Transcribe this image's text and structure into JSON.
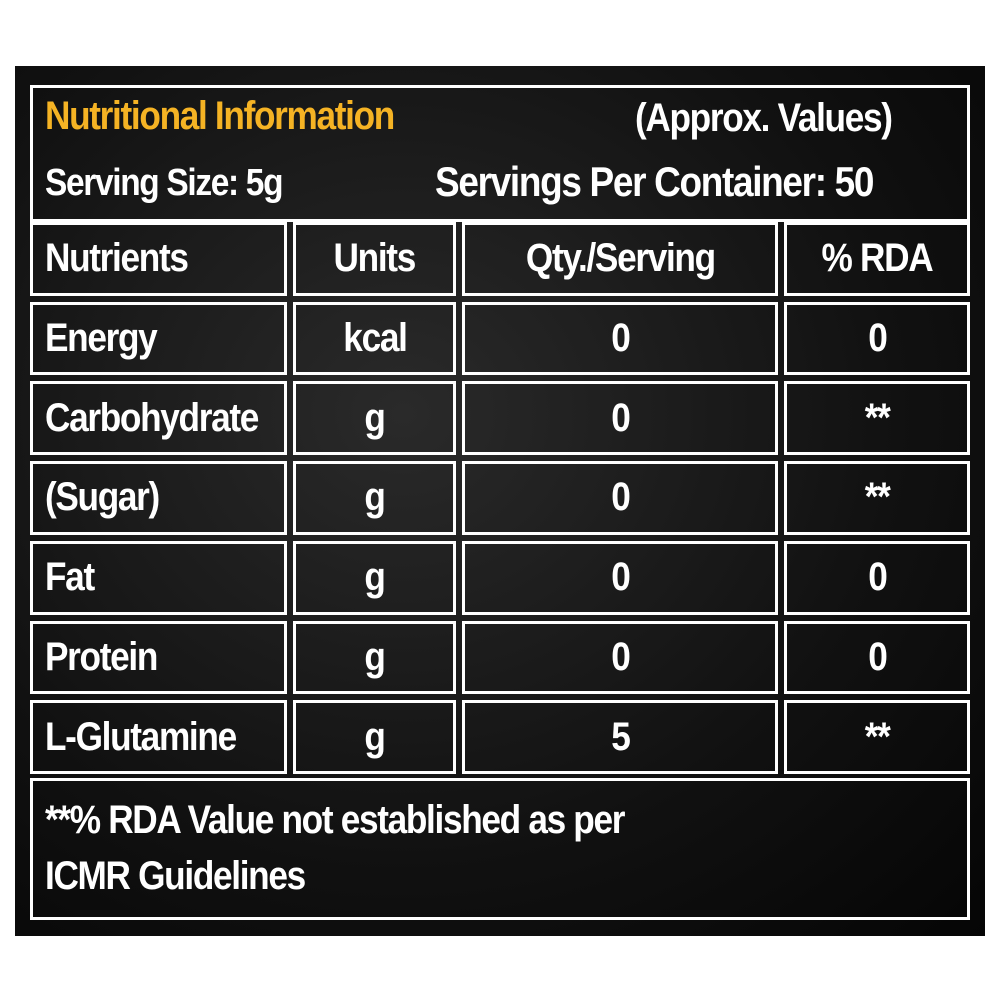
{
  "header": {
    "title": "Nutritional Information",
    "note": "(Approx. Values)",
    "serving_size": "Serving Size: 5g",
    "servings": "Servings Per Container: 50"
  },
  "table": {
    "columns": [
      "Nutrients",
      "Units",
      "Qty./Serving",
      "% RDA"
    ],
    "rows": [
      [
        "Energy",
        "kcal",
        0,
        0
      ],
      [
        "Carbohydrate",
        "g",
        0,
        "**"
      ],
      [
        "(Sugar)",
        "g",
        0,
        "**"
      ],
      [
        "Fat",
        "g",
        0,
        0
      ],
      [
        "Protein",
        "g",
        0,
        0
      ],
      [
        "L-Glutamine",
        "g",
        5,
        "**"
      ]
    ]
  },
  "footnote": {
    "lines": [
      "**% RDA Value not established as per",
      "ICMR Guidelines"
    ]
  }
}
